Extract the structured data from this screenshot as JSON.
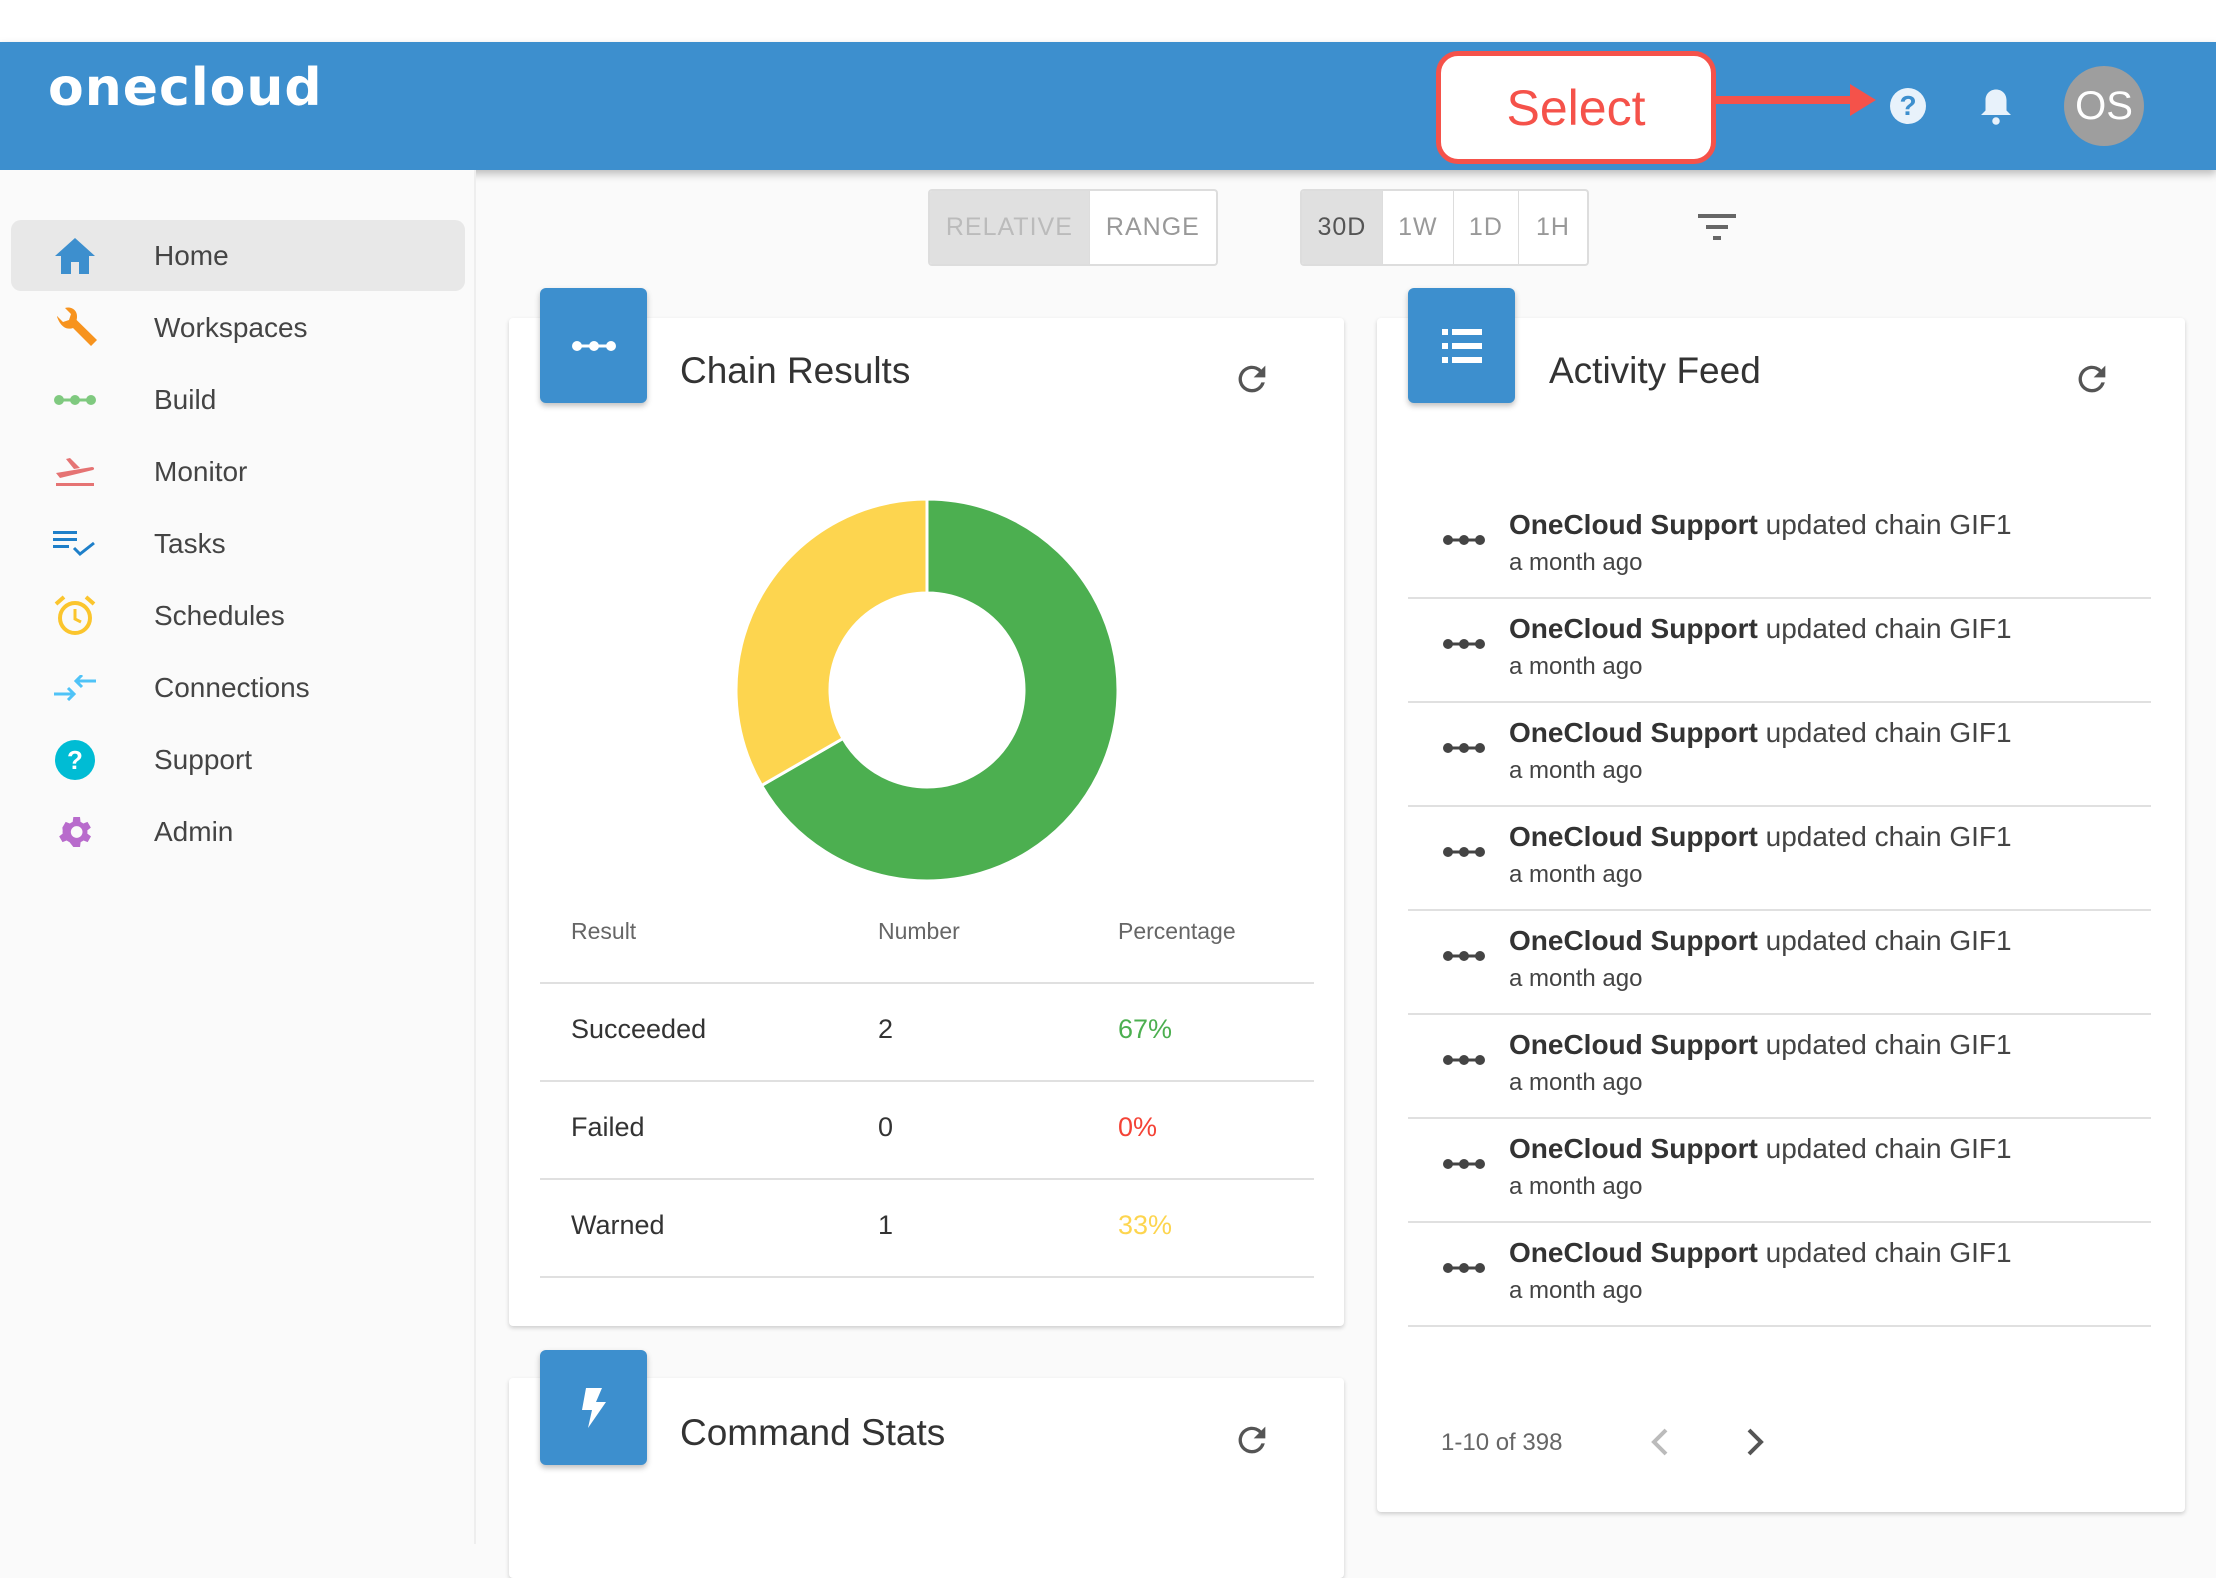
{
  "header": {
    "logo": "onecloud",
    "callout": "Select",
    "avatar": "OS",
    "icons": [
      "help-icon",
      "bell-icon"
    ]
  },
  "sidebar": {
    "items": [
      {
        "label": "Home",
        "icon": "home-icon",
        "color": "#3d8fce",
        "active": true
      },
      {
        "label": "Workspaces",
        "icon": "wrench-icon",
        "color": "#f7931e"
      },
      {
        "label": "Build",
        "icon": "chain-icon",
        "color": "#7fc97f"
      },
      {
        "label": "Monitor",
        "icon": "plane-icon",
        "color": "#e57373"
      },
      {
        "label": "Tasks",
        "icon": "tasks-icon",
        "color": "#1e7fc9"
      },
      {
        "label": "Schedules",
        "icon": "alarm-icon",
        "color": "#fbc52d"
      },
      {
        "label": "Connections",
        "icon": "connections-icon",
        "color": "#4fc3f7"
      },
      {
        "label": "Support",
        "icon": "support-icon",
        "color": "#00bcd4"
      },
      {
        "label": "Admin",
        "icon": "gear-icon",
        "color": "#b86bcc"
      }
    ]
  },
  "toolbar": {
    "mode": [
      "RELATIVE",
      "RANGE"
    ],
    "ranges": [
      "30D",
      "1W",
      "1D",
      "1H"
    ],
    "selected_range": "30D"
  },
  "chain_results": {
    "title": "Chain Results",
    "columns": [
      "Result",
      "Number",
      "Percentage"
    ],
    "rows": [
      {
        "result": "Succeeded",
        "number": "2",
        "percentage": "67%",
        "color": "#4caf50"
      },
      {
        "result": "Failed",
        "number": "0",
        "percentage": "0%",
        "color": "#f44336"
      },
      {
        "result": "Warned",
        "number": "1",
        "percentage": "33%",
        "color": "#fdd54f"
      }
    ]
  },
  "command_stats": {
    "title": "Command Stats"
  },
  "activity_feed": {
    "title": "Activity Feed",
    "items": [
      {
        "user": "OneCloud Support",
        "action": "updated chain GIF1",
        "time": "a month ago"
      },
      {
        "user": "OneCloud Support",
        "action": "updated chain GIF1",
        "time": "a month ago"
      },
      {
        "user": "OneCloud Support",
        "action": "updated chain GIF1",
        "time": "a month ago"
      },
      {
        "user": "OneCloud Support",
        "action": "updated chain GIF1",
        "time": "a month ago"
      },
      {
        "user": "OneCloud Support",
        "action": "updated chain GIF1",
        "time": "a month ago"
      },
      {
        "user": "OneCloud Support",
        "action": "updated chain GIF1",
        "time": "a month ago"
      },
      {
        "user": "OneCloud Support",
        "action": "updated chain GIF1",
        "time": "a month ago"
      },
      {
        "user": "OneCloud Support",
        "action": "updated chain GIF1",
        "time": "a month ago"
      }
    ],
    "pagination": "1-10 of 398"
  }
}
